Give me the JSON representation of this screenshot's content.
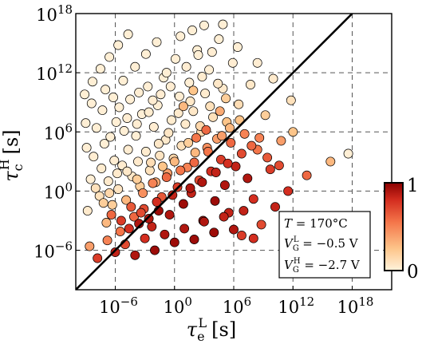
{
  "chart_data": {
    "type": "scatter",
    "xscale": "log",
    "yscale": "log",
    "xlim": [
      1e-10,
      1e+22
    ],
    "ylim": [
      1e-10,
      1e+18
    ],
    "grid": true,
    "xlabel": {
      "main": "τ",
      "sub": "e",
      "sup": "L",
      "unit": "[s]"
    },
    "ylabel": {
      "main": "τ",
      "sub": "c",
      "sup": "H",
      "unit": "[s]"
    },
    "xticks": [
      {
        "exp": -6,
        "base": "10",
        "power": "−6"
      },
      {
        "exp": 0,
        "base": "10",
        "power": "0"
      },
      {
        "exp": 6,
        "base": "10",
        "power": "6"
      },
      {
        "exp": 12,
        "base": "10",
        "power": "12"
      },
      {
        "exp": 18,
        "base": "10",
        "power": "18"
      }
    ],
    "yticks": [
      {
        "exp": -6,
        "base": "10",
        "power": "−6"
      },
      {
        "exp": 0,
        "base": "10",
        "power": "0"
      },
      {
        "exp": 6,
        "base": "10",
        "power": "6"
      },
      {
        "exp": 12,
        "base": "10",
        "power": "12"
      },
      {
        "exp": 18,
        "base": "10",
        "power": "18"
      }
    ],
    "reference_line": "y = x",
    "colorbar": {
      "min_label": "0",
      "max_label": "1",
      "colors": [
        "#fff3dc",
        "#fdc58a",
        "#f4764a",
        "#d42e20",
        "#8b0000"
      ]
    },
    "annotation": [
      {
        "main": "T",
        "eq": " = 170°C"
      },
      {
        "main": "V",
        "sub": "G",
        "sup": "L",
        "eq": " = −0.5 V"
      },
      {
        "main": "V",
        "sub": "G",
        "sup": "H",
        "eq": " = −2.7 V"
      }
    ],
    "points_note": "log10 coordinates: [log10 τe, log10 τc, color fraction 0–1]",
    "points": [
      [
        -8.8,
        -2.0,
        0.05
      ],
      [
        -8.5,
        1.2,
        0.02
      ],
      [
        -8.2,
        3.5,
        0.03
      ],
      [
        -7.9,
        6.4,
        0.02
      ],
      [
        -7.6,
        -0.5,
        0.1
      ],
      [
        -7.4,
        2.3,
        0.04
      ],
      [
        -7.1,
        4.8,
        0.02
      ],
      [
        -6.9,
        -3.2,
        0.3
      ],
      [
        -6.7,
        1.0,
        0.05
      ],
      [
        -6.5,
        5.5,
        0.02
      ],
      [
        -6.3,
        -1.4,
        0.2
      ],
      [
        -6.1,
        3.1,
        0.03
      ],
      [
        -5.9,
        7.0,
        0.02
      ],
      [
        -5.7,
        0.2,
        0.08
      ],
      [
        -5.5,
        -4.1,
        0.55
      ],
      [
        -5.3,
        2.6,
        0.04
      ],
      [
        -5.1,
        6.1,
        0.02
      ],
      [
        -4.9,
        -0.9,
        0.3
      ],
      [
        -4.7,
        4.2,
        0.03
      ],
      [
        -4.5,
        9.3,
        0.02
      ],
      [
        -4.3,
        1.5,
        0.06
      ],
      [
        -4.1,
        -2.6,
        0.6
      ],
      [
        -3.9,
        5.6,
        0.02
      ],
      [
        -3.7,
        3.0,
        0.05
      ],
      [
        -3.5,
        0.5,
        0.2
      ],
      [
        -3.3,
        7.8,
        0.02
      ],
      [
        -3.1,
        -1.8,
        0.7
      ],
      [
        -2.9,
        4.0,
        0.04
      ],
      [
        -2.7,
        10.6,
        0.02
      ],
      [
        -2.5,
        2.1,
        0.1
      ],
      [
        -2.3,
        -3.6,
        0.85
      ],
      [
        -2.1,
        6.5,
        0.03
      ],
      [
        -1.9,
        0.9,
        0.35
      ],
      [
        -1.7,
        8.7,
        0.02
      ],
      [
        -1.5,
        3.6,
        0.08
      ],
      [
        -1.3,
        -0.6,
        0.65
      ],
      [
        -1.1,
        11.5,
        0.02
      ],
      [
        -0.9,
        5.2,
        0.05
      ],
      [
        -0.7,
        1.8,
        0.4
      ],
      [
        -0.5,
        -2.4,
        0.9
      ],
      [
        -0.3,
        7.2,
        0.04
      ],
      [
        -0.1,
        3.3,
        0.15
      ],
      [
        0.1,
        13.4,
        0.02
      ],
      [
        0.3,
        0.4,
        0.75
      ],
      [
        0.5,
        9.6,
        0.03
      ],
      [
        0.7,
        4.6,
        0.1
      ],
      [
        0.9,
        -1.3,
        0.95
      ],
      [
        1.1,
        6.8,
        0.05
      ],
      [
        1.3,
        2.4,
        0.5
      ],
      [
        1.5,
        11.0,
        0.02
      ],
      [
        1.7,
        -0.2,
        0.85
      ],
      [
        1.9,
        8.1,
        0.06
      ],
      [
        2.1,
        3.9,
        0.3
      ],
      [
        2.3,
        14.3,
        0.02
      ],
      [
        2.5,
        1.1,
        0.7
      ],
      [
        2.7,
        6.0,
        0.15
      ],
      [
        2.9,
        -3.0,
        0.9
      ],
      [
        3.1,
        9.9,
        0.04
      ],
      [
        3.3,
        4.4,
        0.45
      ],
      [
        3.5,
        12.3,
        0.02
      ],
      [
        3.7,
        2.0,
        0.8
      ],
      [
        3.9,
        7.5,
        0.1
      ],
      [
        4.1,
        -1.0,
        0.95
      ],
      [
        4.3,
        5.3,
        0.4
      ],
      [
        4.5,
        15.4,
        0.02
      ],
      [
        4.7,
        3.2,
        0.75
      ],
      [
        4.9,
        10.4,
        0.05
      ],
      [
        5.1,
        0.6,
        0.9
      ],
      [
        5.3,
        7.0,
        0.25
      ],
      [
        5.5,
        -2.2,
        0.85
      ],
      [
        5.7,
        4.9,
        0.6
      ],
      [
        5.9,
        13.0,
        0.03
      ],
      [
        6.2,
        2.5,
        0.85
      ],
      [
        6.5,
        8.8,
        0.12
      ],
      [
        6.8,
        -4.5,
        0.75
      ],
      [
        7.1,
        5.8,
        0.5
      ],
      [
        7.4,
        1.3,
        0.9
      ],
      [
        7.7,
        10.8,
        0.06
      ],
      [
        8.0,
        -0.8,
        0.8
      ],
      [
        8.4,
        4.2,
        0.55
      ],
      [
        8.8,
        -3.4,
        0.7
      ],
      [
        9.2,
        7.7,
        0.2
      ],
      [
        9.7,
        2.2,
        0.75
      ],
      [
        10.2,
        -1.6,
        0.85
      ],
      [
        10.8,
        5.1,
        0.4
      ],
      [
        11.5,
        0.0,
        0.8
      ],
      [
        12.3,
        -2.8,
        0.7
      ],
      [
        13.4,
        1.6,
        0.6
      ],
      [
        14.5,
        -4.0,
        0.65
      ],
      [
        15.8,
        3.0,
        0.3
      ],
      [
        -8.6,
        -5.6,
        0.4
      ],
      [
        -7.8,
        -6.8,
        0.75
      ],
      [
        -6.8,
        -5.0,
        0.5
      ],
      [
        -6.0,
        -6.2,
        0.85
      ],
      [
        -5.0,
        -5.4,
        0.7
      ],
      [
        -4.0,
        -6.5,
        0.9
      ],
      [
        -3.0,
        -4.8,
        0.8
      ],
      [
        -2.0,
        -6.0,
        0.95
      ],
      [
        -1.0,
        -4.4,
        0.9
      ],
      [
        0.0,
        -5.2,
        0.95
      ],
      [
        1.0,
        -3.8,
        0.9
      ],
      [
        2.0,
        -4.9,
        0.95
      ],
      [
        3.0,
        -3.1,
        0.9
      ],
      [
        4.0,
        -4.2,
        0.95
      ],
      [
        5.0,
        -2.6,
        0.85
      ],
      [
        6.0,
        -3.9,
        0.9
      ],
      [
        7.0,
        -2.0,
        0.85
      ],
      [
        8.0,
        -4.8,
        0.8
      ],
      [
        -7.3,
        8.2,
        0.02
      ],
      [
        -6.2,
        9.5,
        0.02
      ],
      [
        -5.2,
        11.2,
        0.02
      ],
      [
        -4.0,
        12.6,
        0.02
      ],
      [
        -2.9,
        13.9,
        0.02
      ],
      [
        -1.8,
        15.1,
        0.02
      ],
      [
        -0.8,
        12.0,
        0.02
      ],
      [
        0.6,
        15.7,
        0.02
      ],
      [
        1.8,
        16.3,
        0.02
      ],
      [
        3.0,
        16.8,
        0.02
      ],
      [
        -3.6,
        10.0,
        0.03
      ],
      [
        -2.2,
        9.2,
        0.03
      ],
      [
        -8.9,
        4.4,
        0.02
      ],
      [
        -9.0,
        6.9,
        0.02
      ],
      [
        -8.4,
        8.9,
        0.02
      ],
      [
        -7.0,
        10.3,
        0.02
      ],
      [
        -5.6,
        8.5,
        0.02
      ],
      [
        -4.8,
        7.4,
        0.03
      ],
      [
        -3.8,
        6.8,
        0.03
      ],
      [
        -2.6,
        8.0,
        0.04
      ],
      [
        -1.4,
        9.8,
        0.03
      ],
      [
        -0.4,
        10.6,
        0.03
      ],
      [
        1.2,
        12.6,
        0.03
      ],
      [
        2.4,
        13.8,
        0.02
      ],
      [
        -1.6,
        4.8,
        0.06
      ],
      [
        -0.6,
        5.9,
        0.07
      ],
      [
        0.4,
        7.9,
        0.05
      ],
      [
        1.6,
        9.1,
        0.06
      ],
      [
        2.8,
        11.6,
        0.04
      ],
      [
        -2.4,
        2.9,
        0.12
      ],
      [
        -1.2,
        2.5,
        0.25
      ],
      [
        0.0,
        3.0,
        0.3
      ],
      [
        1.4,
        4.9,
        0.2
      ],
      [
        2.6,
        6.6,
        0.15
      ],
      [
        3.6,
        8.6,
        0.1
      ],
      [
        4.4,
        10.9,
        0.06
      ],
      [
        -3.2,
        -0.2,
        0.45
      ],
      [
        -2.2,
        0.8,
        0.5
      ],
      [
        -0.8,
        1.4,
        0.6
      ],
      [
        0.6,
        2.1,
        0.55
      ],
      [
        2.0,
        2.9,
        0.6
      ],
      [
        3.4,
        4.0,
        0.55
      ],
      [
        4.8,
        5.6,
        0.4
      ],
      [
        5.6,
        6.4,
        0.3
      ],
      [
        6.6,
        7.2,
        0.25
      ],
      [
        -4.4,
        -1.6,
        0.65
      ],
      [
        -3.4,
        -2.2,
        0.7
      ],
      [
        -1.8,
        -1.1,
        0.8
      ],
      [
        -0.2,
        -0.4,
        0.85
      ],
      [
        1.6,
        0.3,
        0.9
      ],
      [
        2.8,
        0.9,
        0.9
      ],
      [
        4.2,
        1.9,
        0.85
      ],
      [
        5.4,
        2.8,
        0.8
      ],
      [
        6.8,
        3.8,
        0.7
      ],
      [
        7.8,
        4.6,
        0.6
      ],
      [
        8.6,
        5.4,
        0.5
      ],
      [
        9.4,
        3.4,
        0.65
      ],
      [
        10.6,
        2.6,
        0.7
      ],
      [
        12.0,
        6.0,
        0.25
      ],
      [
        17.6,
        3.8,
        0.02
      ],
      [
        11.8,
        9.2,
        0.1
      ],
      [
        10.0,
        11.4,
        0.05
      ],
      [
        8.4,
        13.0,
        0.03
      ],
      [
        6.4,
        14.6,
        0.02
      ],
      [
        4.9,
        16.9,
        0.02
      ],
      [
        3.8,
        14.1,
        0.03
      ],
      [
        -6.4,
        -2.4,
        0.6
      ],
      [
        -5.4,
        -3.0,
        0.75
      ],
      [
        -4.6,
        -3.8,
        0.8
      ],
      [
        -3.6,
        -3.3,
        0.9
      ],
      [
        -2.6,
        -2.8,
        0.9
      ],
      [
        -1.6,
        -2.0,
        0.95
      ],
      [
        -8.0,
        0.3,
        0.1
      ],
      [
        -7.2,
        -1.2,
        0.2
      ],
      [
        -6.6,
        -0.2,
        0.15
      ],
      [
        -5.8,
        1.8,
        0.05
      ],
      [
        -4.8,
        2.0,
        0.06
      ],
      [
        -3.8,
        1.2,
        0.2
      ],
      [
        -9.1,
        9.8,
        0.02
      ],
      [
        -8.3,
        11.1,
        0.02
      ],
      [
        -7.5,
        12.4,
        0.02
      ],
      [
        -6.6,
        13.6,
        0.02
      ],
      [
        -5.7,
        14.8,
        0.02
      ],
      [
        -4.7,
        15.9,
        0.02
      ],
      [
        0.9,
        8.6,
        0.3
      ],
      [
        1.9,
        10.2,
        0.25
      ],
      [
        2.2,
        5.4,
        0.55
      ],
      [
        3.2,
        6.2,
        0.6
      ],
      [
        4.6,
        8.1,
        0.35
      ],
      [
        5.2,
        9.4,
        0.2
      ]
    ]
  }
}
